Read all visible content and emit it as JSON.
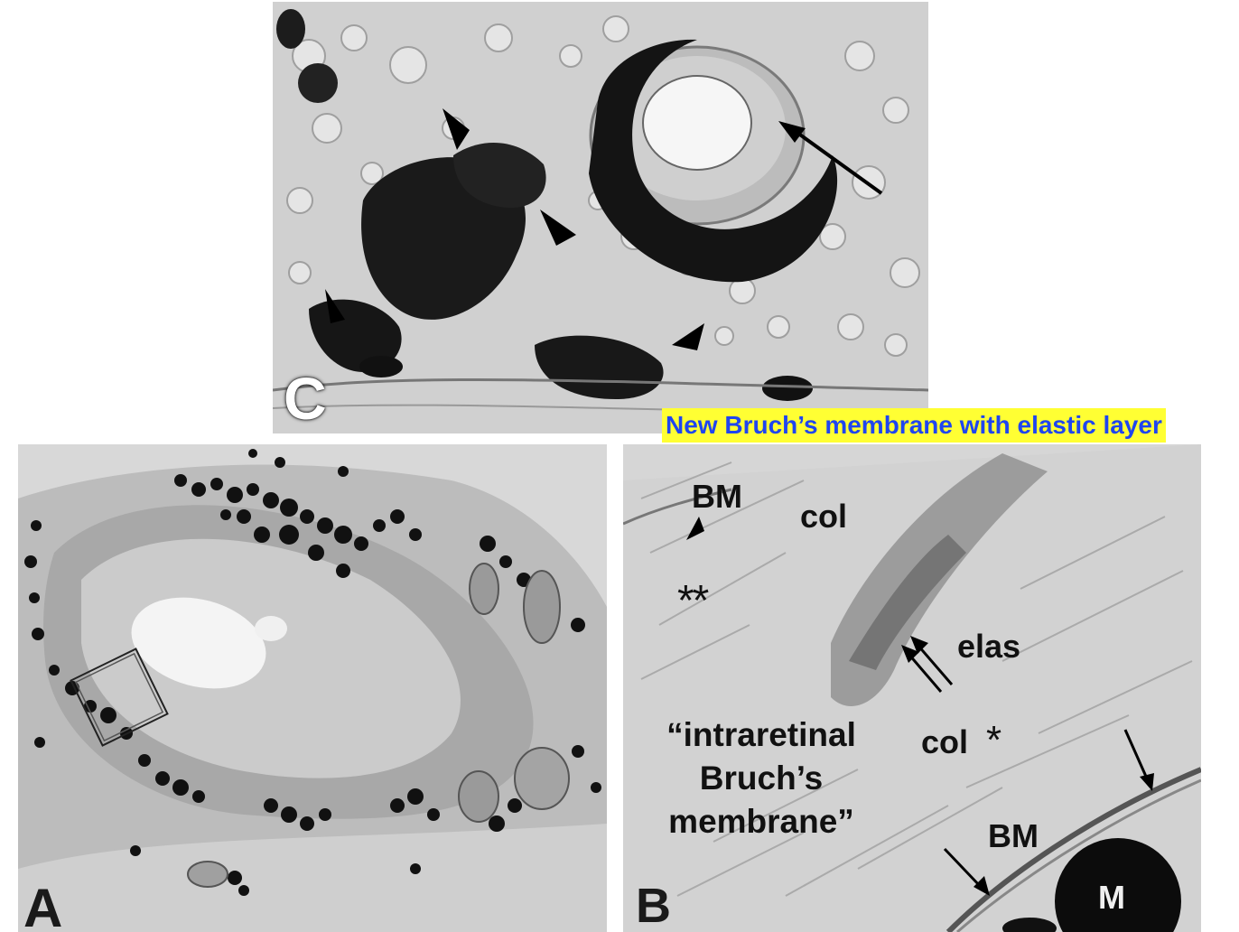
{
  "figure": {
    "caption": "New Bruch’s membrane with elastic layer",
    "colors": {
      "caption_background": "#ffff33",
      "caption_text": "#1f45f0"
    },
    "panels": {
      "c": {
        "letter": "C",
        "description_icon": "light-micrograph-icon"
      },
      "a": {
        "letter": "A",
        "description_icon": "light-micrograph-icon"
      },
      "b": {
        "letter": "B",
        "description_icon": "electron-micrograph-icon",
        "labels": {
          "bm_top": "BM",
          "col_top": "col",
          "double_asterisk": "**",
          "elas": "elas",
          "intraretinal": "“intraretinal Bruch’s membrane”",
          "col_mid": "col",
          "asterisk": "*",
          "bm_bottom": "BM",
          "m": "M"
        }
      }
    }
  }
}
